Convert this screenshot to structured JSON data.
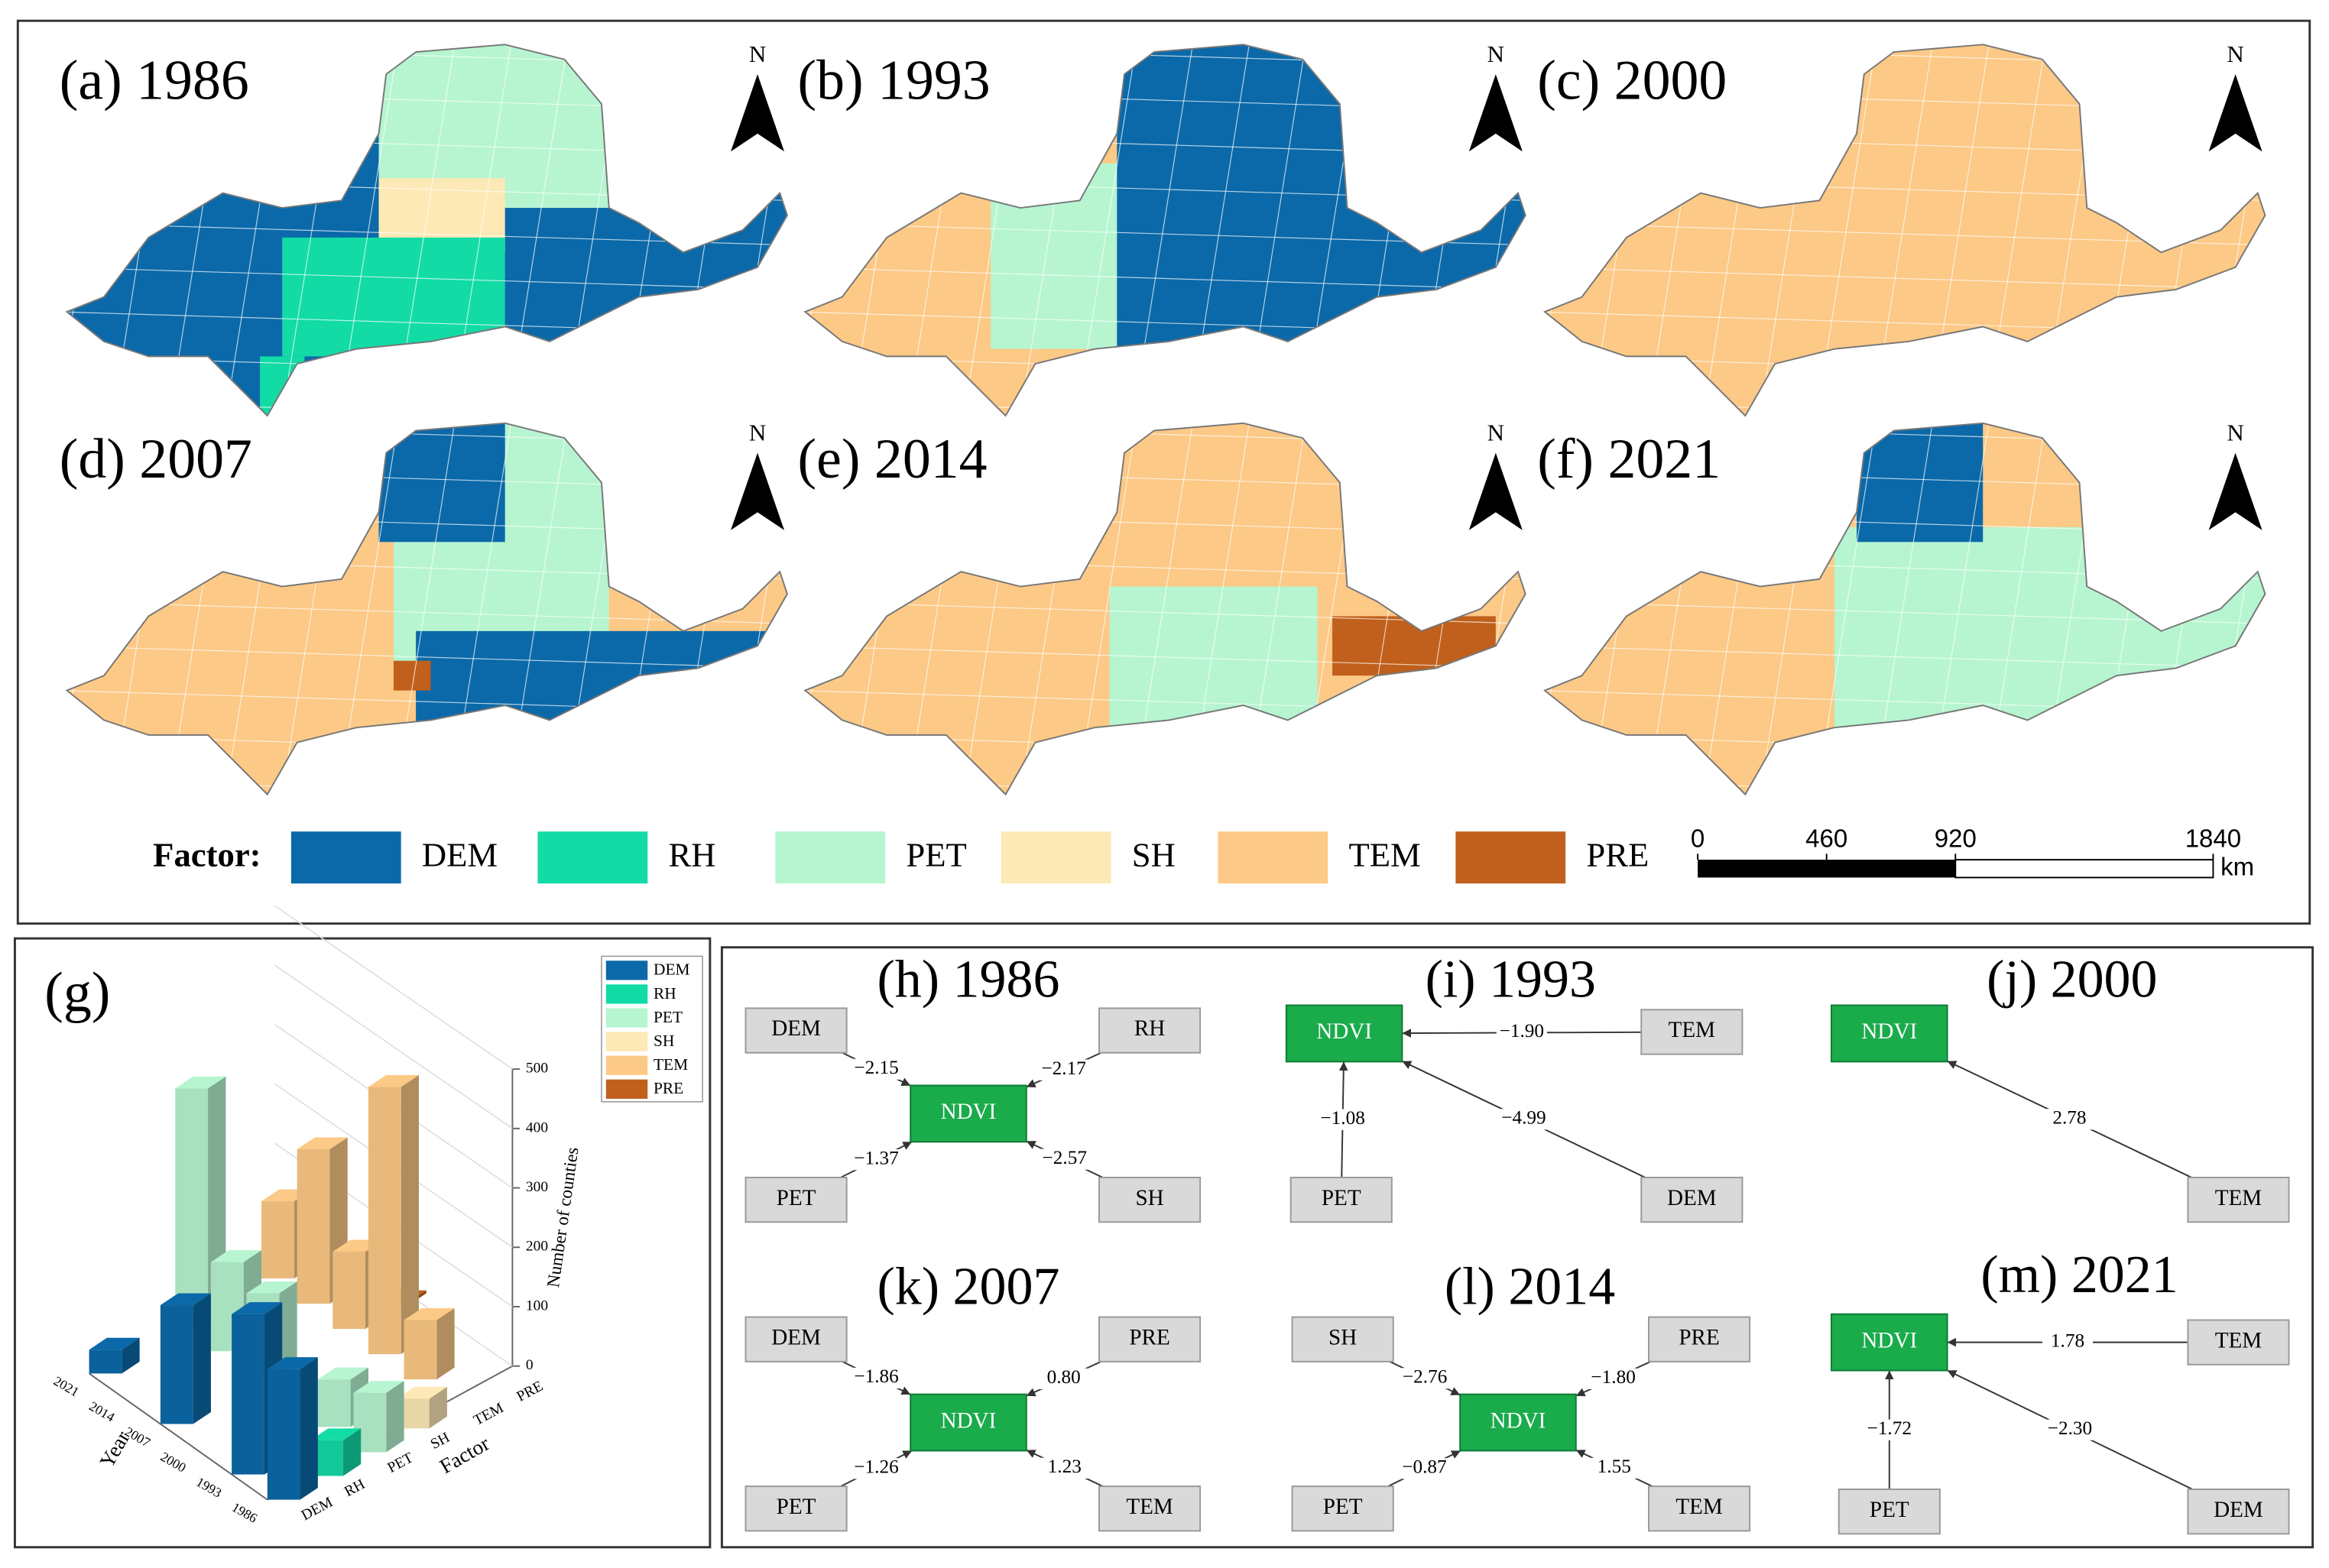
{
  "maps": [
    {
      "label": "(a) 1986",
      "north": "N"
    },
    {
      "label": "(b) 1993",
      "north": "N"
    },
    {
      "label": "(c) 2000",
      "north": "N"
    },
    {
      "label": "(d) 2007",
      "north": "N"
    },
    {
      "label": "(e) 2014",
      "north": "N"
    },
    {
      "label": "(f) 2021",
      "north": "N"
    }
  ],
  "legend": {
    "title": "Factor:",
    "items": [
      {
        "name": "DEM",
        "color": "#0b69a9"
      },
      {
        "name": "RH",
        "color": "#12dba6"
      },
      {
        "name": "PET",
        "color": "#b6f5d0"
      },
      {
        "name": "SH",
        "color": "#fde9b5"
      },
      {
        "name": "TEM",
        "color": "#fcc986"
      },
      {
        "name": "PRE",
        "color": "#c0601c"
      }
    ]
  },
  "scale_bar": {
    "ticks": [
      0,
      460,
      920,
      1840
    ],
    "unit": "km"
  },
  "panel_g": {
    "label": "(g)",
    "z_axis_label": "Number of counties",
    "z_ticks": [
      0,
      100,
      200,
      300,
      400,
      500
    ],
    "x_label": "Year",
    "y_label": "Factor",
    "years": [
      "1986",
      "1993",
      "2000",
      "2007",
      "2014",
      "2021"
    ],
    "factors": [
      "DEM",
      "RH",
      "PET",
      "SH",
      "TEM",
      "PRE"
    ],
    "counts": [
      [
        220,
        60,
        100,
        50,
        0,
        0
      ],
      [
        270,
        0,
        80,
        0,
        100,
        0
      ],
      [
        0,
        0,
        0,
        0,
        450,
        0
      ],
      [
        200,
        0,
        140,
        0,
        130,
        5
      ],
      [
        0,
        0,
        150,
        0,
        260,
        30
      ],
      [
        40,
        0,
        400,
        0,
        130,
        0
      ]
    ]
  },
  "diagrams": [
    {
      "label": "(h) 1986",
      "center": "NDVI",
      "nodes": [
        "DEM",
        "RH",
        "PET",
        "SH"
      ],
      "weights": [
        "−2.15",
        "−2.17",
        "−1.37",
        "−2.57"
      ]
    },
    {
      "label": "(i) 1993",
      "center": "NDVI",
      "nodes": [
        "TEM",
        "PET",
        "DEM"
      ],
      "weights": [
        "−1.90",
        "−1.08",
        "−4.99"
      ]
    },
    {
      "label": "(j) 2000",
      "center": "NDVI",
      "nodes": [
        "TEM"
      ],
      "weights": [
        "2.78"
      ]
    },
    {
      "label": "(k) 2007",
      "center": "NDVI",
      "nodes": [
        "DEM",
        "PRE",
        "PET",
        "TEM"
      ],
      "weights": [
        "−1.86",
        "0.80",
        "−1.26",
        "1.23"
      ]
    },
    {
      "label": "(l) 2014",
      "center": "NDVI",
      "nodes": [
        "SH",
        "PRE",
        "PET",
        "TEM"
      ],
      "weights": [
        "−2.76",
        "−1.80",
        "−0.87",
        "1.55"
      ]
    },
    {
      "label": "(m) 2021",
      "center": "NDVI",
      "nodes": [
        "TEM",
        "PET",
        "DEM"
      ],
      "weights": [
        "1.78",
        "−1.72",
        "−2.30"
      ]
    }
  ]
}
